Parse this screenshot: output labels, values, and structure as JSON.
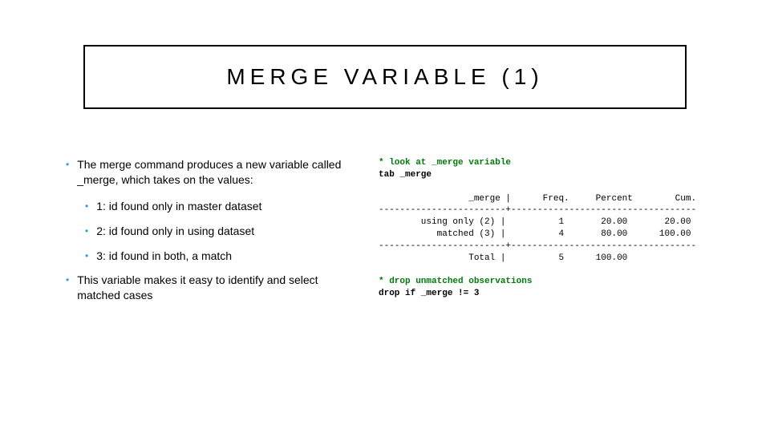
{
  "title": "MERGE VARIABLE (1)",
  "bullets": {
    "b1": "The merge command produces a new variable called _merge, which takes on the values:",
    "b1a": "1: id found only in master dataset",
    "b1b": "2: id found only in using dataset",
    "b1c": "3: id found in both, a match",
    "b2": "This variable makes it easy to identify and select matched cases"
  },
  "code": {
    "c1": "* look at _merge variable",
    "c2": "tab _merge",
    "hdr_merge": "                 _merge |",
    "hdr_freq": "      Freq.",
    "hdr_pct": "     Percent",
    "hdr_cum": "        Cum.",
    "sep1": "------------------------+-----------------------------------",
    "r1_label": "        using only (2) |",
    "r1_freq": "          1",
    "r1_pct": "       20.00",
    "r1_cum": "       20.00",
    "r2_label": "           matched (3) |",
    "r2_freq": "          4",
    "r2_pct": "       80.00",
    "r2_cum": "      100.00",
    "sep2": "------------------------+-----------------------------------",
    "tot_label": "                 Total |",
    "tot_freq": "          5",
    "tot_pct": "      100.00",
    "c3": "* drop unmatched observations",
    "c4": "drop if _merge != 3"
  },
  "colors": {
    "bullet_dot": "#2a9fd6",
    "code_comment": "#007a0a",
    "border": "#000000",
    "background": "#ffffff"
  },
  "typography": {
    "title_fontsize": 28,
    "title_letter_spacing": 6,
    "body_fontsize": 14,
    "code_fontsize": 11,
    "code_font": "Courier New"
  }
}
